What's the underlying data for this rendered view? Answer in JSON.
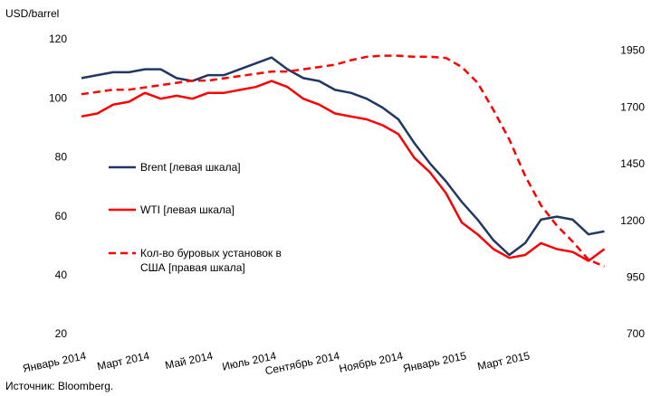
{
  "chart_data": {
    "type": "line",
    "y_label": "USD/barrel",
    "source": "Источник: Bloomberg.",
    "categories": [
      "Январь 2014",
      null,
      null,
      null,
      "Март 2014",
      null,
      null,
      null,
      "Май 2014",
      null,
      null,
      null,
      "Июль 2014",
      null,
      null,
      null,
      "Сентябрь 2014",
      null,
      null,
      null,
      "Ноябрь 2014",
      null,
      null,
      null,
      "Январь 2015",
      null,
      null,
      null,
      "Март 2015",
      null,
      null,
      null,
      null,
      null
    ],
    "series": [
      {
        "name": "Brent [левая шкала]",
        "color": "#1f3864",
        "dash": false,
        "values": [
          107,
          108,
          109,
          109,
          110,
          110,
          107,
          106,
          108,
          108,
          110,
          112,
          114,
          110,
          107,
          106,
          103,
          102,
          100,
          97,
          93,
          85,
          78,
          72,
          65,
          59,
          52,
          47,
          51,
          59,
          60,
          59,
          54,
          55
        ]
      },
      {
        "name": "WTI [левая шкала]",
        "color": "#ff0000",
        "dash": false,
        "values": [
          94,
          95,
          98,
          99,
          102,
          100,
          101,
          100,
          102,
          102,
          103,
          104,
          106,
          104,
          100,
          98,
          95,
          94,
          93,
          91,
          88,
          80,
          75,
          68,
          58,
          54,
          49,
          46,
          47,
          51,
          49,
          48,
          45,
          49
        ]
      },
      {
        "name": "Кол-во буровых установок в США [правая шкала]",
        "color": "#ff0000",
        "dash": true,
        "axis": "y2",
        "values": [
          1760,
          1770,
          1780,
          1780,
          1790,
          1800,
          1810,
          1820,
          1820,
          1830,
          1840,
          1850,
          1860,
          1860,
          1870,
          1880,
          1890,
          1910,
          1925,
          1930,
          1930,
          1925,
          1925,
          1920,
          1880,
          1810,
          1690,
          1560,
          1400,
          1270,
          1180,
          1110,
          1030,
          1000
        ]
      }
    ],
    "ylim": [
      20,
      120
    ],
    "yticks": [
      20,
      40,
      60,
      80,
      100,
      120
    ],
    "y2lim": [
      700,
      2000
    ],
    "y2ticks": [
      700,
      950,
      1200,
      1450,
      1700,
      1950
    ],
    "grid": false
  }
}
